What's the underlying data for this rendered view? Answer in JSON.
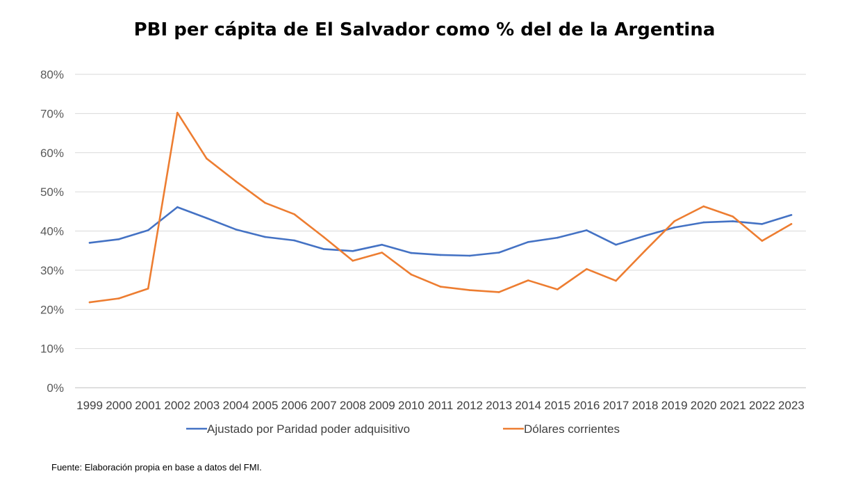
{
  "chart_data": {
    "type": "line",
    "title": "PBI per cápita de El Salvador como % del de la Argentina",
    "x": [
      "1999",
      "2000",
      "2001",
      "2002",
      "2003",
      "2004",
      "2005",
      "2006",
      "2007",
      "2008",
      "2009",
      "2010",
      "2011",
      "2012",
      "2013",
      "2014",
      "2015",
      "2016",
      "2017",
      "2018",
      "2019",
      "2020",
      "2021",
      "2022",
      "2023"
    ],
    "ylim": [
      0,
      80
    ],
    "yticks": [
      "0%",
      "10%",
      "20%",
      "30%",
      "40%",
      "50%",
      "60%",
      "70%",
      "80%"
    ],
    "grid": true,
    "legend_position": "bottom",
    "series": [
      {
        "name": "Ajustado por Paridad poder adquisitivo",
        "color": "#4472C4",
        "values": [
          37.0,
          37.9,
          40.2,
          46.1,
          43.3,
          40.4,
          38.5,
          37.6,
          35.4,
          34.9,
          36.5,
          34.4,
          33.9,
          33.7,
          34.5,
          37.2,
          38.3,
          40.2,
          36.5,
          38.8,
          40.9,
          42.2,
          42.5,
          41.8,
          44.1
        ]
      },
      {
        "name": "Dólares corrientes",
        "color": "#ED7D31",
        "values": [
          21.8,
          22.8,
          25.3,
          70.2,
          58.5,
          52.7,
          47.2,
          44.3,
          38.5,
          32.4,
          34.5,
          28.9,
          25.8,
          24.9,
          24.4,
          27.4,
          25.1,
          30.3,
          27.3,
          35.0,
          42.5,
          46.3,
          43.7,
          37.5,
          41.8
        ]
      }
    ]
  },
  "source_note": "Fuente: Elaboración propia en base a datos del FMI."
}
